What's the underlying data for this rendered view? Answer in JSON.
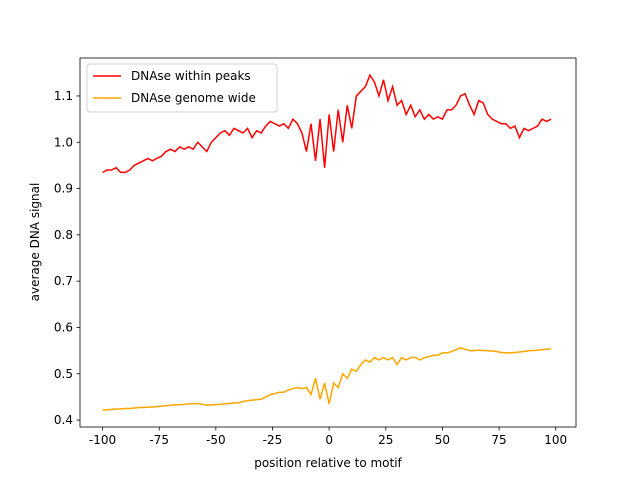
{
  "chart_data": {
    "type": "line",
    "xlabel": "position relative to motif",
    "ylabel": "average DNA signal",
    "x": [
      -100,
      -98,
      -96,
      -94,
      -92,
      -90,
      -88,
      -86,
      -84,
      -82,
      -80,
      -78,
      -76,
      -74,
      -72,
      -70,
      -68,
      -66,
      -64,
      -62,
      -60,
      -58,
      -56,
      -54,
      -52,
      -50,
      -48,
      -46,
      -44,
      -42,
      -40,
      -38,
      -36,
      -34,
      -32,
      -30,
      -28,
      -26,
      -24,
      -22,
      -20,
      -18,
      -16,
      -14,
      -12,
      -10,
      -8,
      -6,
      -4,
      -2,
      0,
      2,
      4,
      6,
      8,
      10,
      12,
      14,
      16,
      18,
      20,
      22,
      24,
      26,
      28,
      30,
      32,
      34,
      36,
      38,
      40,
      42,
      44,
      46,
      48,
      50,
      52,
      54,
      56,
      58,
      60,
      62,
      64,
      66,
      68,
      70,
      72,
      74,
      76,
      78,
      80,
      82,
      84,
      86,
      88,
      90,
      92,
      94,
      96,
      98
    ],
    "series": [
      {
        "name": "DNAse within peaks",
        "color": "#ff0000",
        "values": [
          0.935,
          0.94,
          0.94,
          0.945,
          0.935,
          0.935,
          0.94,
          0.95,
          0.955,
          0.96,
          0.965,
          0.96,
          0.965,
          0.97,
          0.98,
          0.985,
          0.98,
          0.99,
          0.985,
          0.99,
          0.985,
          1.0,
          0.99,
          0.98,
          1.0,
          1.01,
          1.02,
          1.025,
          1.015,
          1.03,
          1.025,
          1.02,
          1.03,
          1.01,
          1.025,
          1.02,
          1.035,
          1.045,
          1.04,
          1.035,
          1.04,
          1.03,
          1.05,
          1.04,
          1.02,
          0.98,
          1.04,
          0.96,
          1.05,
          0.945,
          1.06,
          0.98,
          1.07,
          1.0,
          1.08,
          1.03,
          1.1,
          1.11,
          1.12,
          1.145,
          1.13,
          1.1,
          1.135,
          1.09,
          1.12,
          1.08,
          1.09,
          1.06,
          1.08,
          1.055,
          1.07,
          1.05,
          1.06,
          1.05,
          1.055,
          1.05,
          1.07,
          1.07,
          1.08,
          1.1,
          1.105,
          1.08,
          1.06,
          1.09,
          1.085,
          1.06,
          1.05,
          1.045,
          1.04,
          1.04,
          1.03,
          1.035,
          1.01,
          1.03,
          1.025,
          1.03,
          1.035,
          1.05,
          1.045,
          1.05
        ]
      },
      {
        "name": "DNAse genome wide",
        "color": "#ffa500",
        "values": [
          0.422,
          0.422,
          0.423,
          0.424,
          0.424,
          0.425,
          0.425,
          0.426,
          0.427,
          0.427,
          0.428,
          0.428,
          0.429,
          0.43,
          0.431,
          0.432,
          0.433,
          0.433,
          0.434,
          0.435,
          0.435,
          0.436,
          0.434,
          0.432,
          0.433,
          0.433,
          0.434,
          0.435,
          0.436,
          0.437,
          0.437,
          0.44,
          0.442,
          0.443,
          0.444,
          0.445,
          0.45,
          0.455,
          0.457,
          0.46,
          0.46,
          0.465,
          0.468,
          0.47,
          0.468,
          0.47,
          0.455,
          0.49,
          0.445,
          0.48,
          0.435,
          0.48,
          0.47,
          0.5,
          0.49,
          0.51,
          0.505,
          0.52,
          0.53,
          0.525,
          0.535,
          0.53,
          0.535,
          0.53,
          0.535,
          0.52,
          0.535,
          0.53,
          0.535,
          0.535,
          0.53,
          0.535,
          0.537,
          0.54,
          0.54,
          0.545,
          0.545,
          0.548,
          0.552,
          0.556,
          0.553,
          0.55,
          0.55,
          0.551,
          0.55,
          0.55,
          0.549,
          0.548,
          0.546,
          0.545,
          0.545,
          0.546,
          0.547,
          0.548,
          0.55,
          0.55,
          0.551,
          0.552,
          0.553,
          0.554
        ]
      }
    ],
    "xlim": [
      -109.95,
      108.95
    ],
    "ylim": [
      0.385,
      1.182
    ],
    "xticks": [
      -100,
      -75,
      -50,
      -25,
      0,
      25,
      50,
      75,
      100
    ],
    "yticks": [
      0.4,
      0.5,
      0.6,
      0.7,
      0.8,
      0.9,
      {
        "value": 1,
        "label": "1.0"
      },
      1.1
    ],
    "legend": "upper left"
  }
}
